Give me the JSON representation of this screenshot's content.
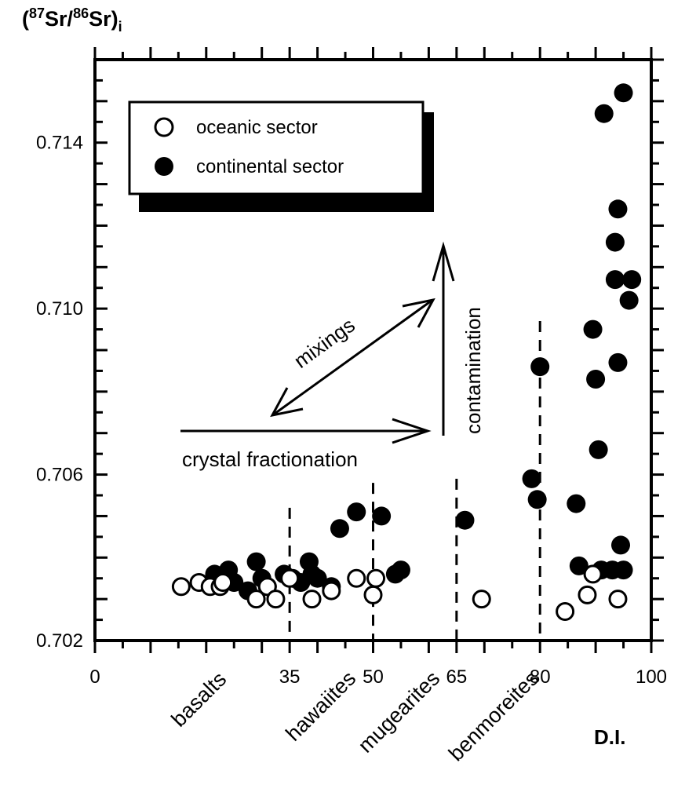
{
  "chart_data": {
    "type": "scatter",
    "ylabel": {
      "open": "(",
      "sup1": "87",
      "mid": "Sr/",
      "sup2": "86",
      "close": "Sr)",
      "sub": "i"
    },
    "xlabel": "D.I.",
    "xlim": [
      0,
      100
    ],
    "ylim": [
      0.702,
      0.716
    ],
    "x_ticks": [
      "0",
      "35",
      "50",
      "65",
      "80",
      "100"
    ],
    "y_ticks": [
      "0.702",
      "0.706",
      "0.710",
      "0.714"
    ],
    "rock_types": [
      "basalts",
      "hawaiites",
      "mugearites",
      "benmoreites"
    ],
    "boundaries": [
      35,
      50,
      65,
      80
    ],
    "legend": {
      "position": "top-left",
      "entries": [
        {
          "label": "oceanic sector",
          "marker": "open-circle"
        },
        {
          "label": "continental sector",
          "marker": "filled-circle"
        }
      ]
    },
    "annotations": {
      "mixing": "mixings",
      "contamination": "contamination",
      "fractionation": "crystal fractionation"
    },
    "series": [
      {
        "name": "oceanic sector",
        "points": [
          [
            15.5,
            0.7033
          ],
          [
            18.7,
            0.7034
          ],
          [
            20.7,
            0.7033
          ],
          [
            22.5,
            0.7033
          ],
          [
            23.0,
            0.7034
          ],
          [
            29.0,
            0.703
          ],
          [
            31.0,
            0.7033
          ],
          [
            32.5,
            0.703
          ],
          [
            35.0,
            0.7035
          ],
          [
            39.0,
            0.703
          ],
          [
            42.5,
            0.7032
          ],
          [
            47.0,
            0.7035
          ],
          [
            50.0,
            0.7031
          ],
          [
            50.5,
            0.7035
          ],
          [
            69.5,
            0.703
          ],
          [
            84.5,
            0.7027
          ],
          [
            88.5,
            0.7031
          ],
          [
            89.5,
            0.7036
          ],
          [
            94.0,
            0.703
          ]
        ]
      },
      {
        "name": "continental sector",
        "points": [
          [
            21.5,
            0.7036
          ],
          [
            24.0,
            0.7037
          ],
          [
            25.0,
            0.7034
          ],
          [
            27.5,
            0.7032
          ],
          [
            29.0,
            0.7039
          ],
          [
            30.0,
            0.7035
          ],
          [
            31.0,
            0.7033
          ],
          [
            34.0,
            0.7036
          ],
          [
            35.5,
            0.7035
          ],
          [
            37.0,
            0.7034
          ],
          [
            38.5,
            0.7039
          ],
          [
            39.0,
            0.7036
          ],
          [
            40.0,
            0.7035
          ],
          [
            42.5,
            0.7033
          ],
          [
            44.0,
            0.7047
          ],
          [
            47.0,
            0.7051
          ],
          [
            51.5,
            0.705
          ],
          [
            54.0,
            0.7036
          ],
          [
            55.0,
            0.7037
          ],
          [
            66.5,
            0.7049
          ],
          [
            78.5,
            0.7059
          ],
          [
            79.5,
            0.7054
          ],
          [
            80.0,
            0.7086
          ],
          [
            86.5,
            0.7053
          ],
          [
            87.0,
            0.7038
          ],
          [
            89.5,
            0.7095
          ],
          [
            90.0,
            0.7083
          ],
          [
            90.5,
            0.7066
          ],
          [
            91.0,
            0.7037
          ],
          [
            91.5,
            0.7147
          ],
          [
            93.0,
            0.7037
          ],
          [
            93.5,
            0.7116
          ],
          [
            93.5,
            0.7107
          ],
          [
            94.0,
            0.7087
          ],
          [
            94.0,
            0.7124
          ],
          [
            94.5,
            0.7043
          ],
          [
            95.0,
            0.7037
          ],
          [
            95.0,
            0.7152
          ],
          [
            96.0,
            0.7102
          ],
          [
            96.5,
            0.7107
          ]
        ]
      }
    ]
  }
}
